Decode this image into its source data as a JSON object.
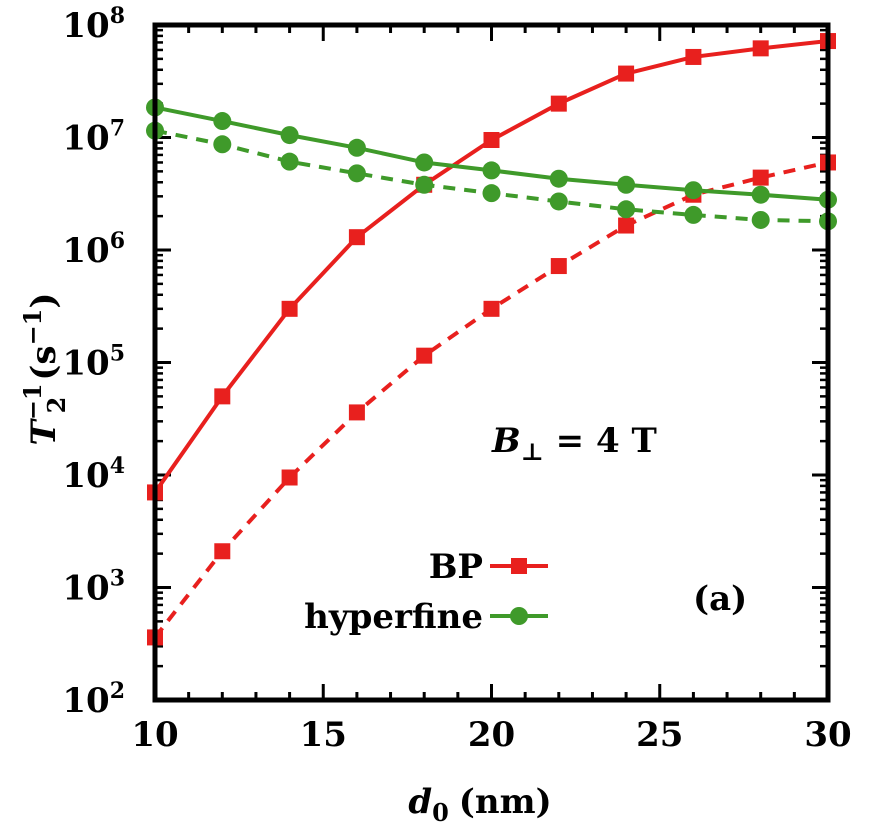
{
  "chart_data": {
    "type": "line",
    "y_scale": "log",
    "xlim": [
      10,
      30
    ],
    "ylim": [
      100,
      100000000
    ],
    "x_ticks": [
      10,
      15,
      20,
      25,
      30
    ],
    "x_tick_labels": [
      "10",
      "15",
      "20",
      "25",
      "30"
    ],
    "y_ticks": [
      100,
      1000,
      10000,
      100000,
      1000000,
      10000000,
      100000000
    ],
    "y_tick_base": "10",
    "y_tick_exponents": [
      "2",
      "3",
      "4",
      "5",
      "6",
      "7",
      "8"
    ],
    "xlabel": {
      "var": "d",
      "sub": "0",
      "unit": "(nm)"
    },
    "ylabel": {
      "var": "T",
      "sub": "2",
      "sup": "−1",
      "unit_open": "(s",
      "unit_sup": "−1",
      "unit_close": ")"
    },
    "annotation": {
      "var": "B",
      "sub": "⊥",
      "rest": " = 4 T"
    },
    "panel_label": "(a)",
    "legend": [
      {
        "label": "BP",
        "color": "#e8201e",
        "marker": "square"
      },
      {
        "label": "hyperfine",
        "color": "#3f9a2a",
        "marker": "circle"
      }
    ],
    "series": [
      {
        "group": "BP",
        "line": "solid",
        "color": "#e8201e",
        "marker": "square",
        "x": [
          10,
          12,
          14,
          16,
          18,
          20,
          22,
          24,
          26,
          28,
          30
        ],
        "y": [
          7000,
          50000,
          300000,
          1300000,
          3800000,
          9500000,
          20000000,
          37000000,
          52000000,
          62000000,
          72000000
        ]
      },
      {
        "group": "BP",
        "line": "dashed",
        "color": "#e8201e",
        "marker": "square",
        "x": [
          10,
          12,
          14,
          16,
          18,
          20,
          22,
          24,
          26,
          28,
          30
        ],
        "y": [
          360,
          2100,
          9500,
          36000,
          115000,
          300000,
          720000,
          1650000,
          3100000,
          4400000,
          6000000
        ]
      },
      {
        "group": "hyperfine",
        "line": "solid",
        "color": "#3f9a2a",
        "marker": "circle",
        "x": [
          10,
          12,
          14,
          16,
          18,
          20,
          22,
          24,
          26,
          28,
          30
        ],
        "y": [
          18500000,
          14000000,
          10500000,
          8100000,
          6000000,
          5100000,
          4300000,
          3800000,
          3400000,
          3100000,
          2800000
        ]
      },
      {
        "group": "hyperfine",
        "line": "dashed",
        "color": "#3f9a2a",
        "marker": "circle",
        "x": [
          10,
          12,
          14,
          16,
          18,
          20,
          22,
          24,
          26,
          28,
          30
        ],
        "y": [
          11500000,
          8700000,
          6100000,
          4800000,
          3800000,
          3200000,
          2700000,
          2300000,
          2050000,
          1850000,
          1800000
        ]
      }
    ]
  }
}
